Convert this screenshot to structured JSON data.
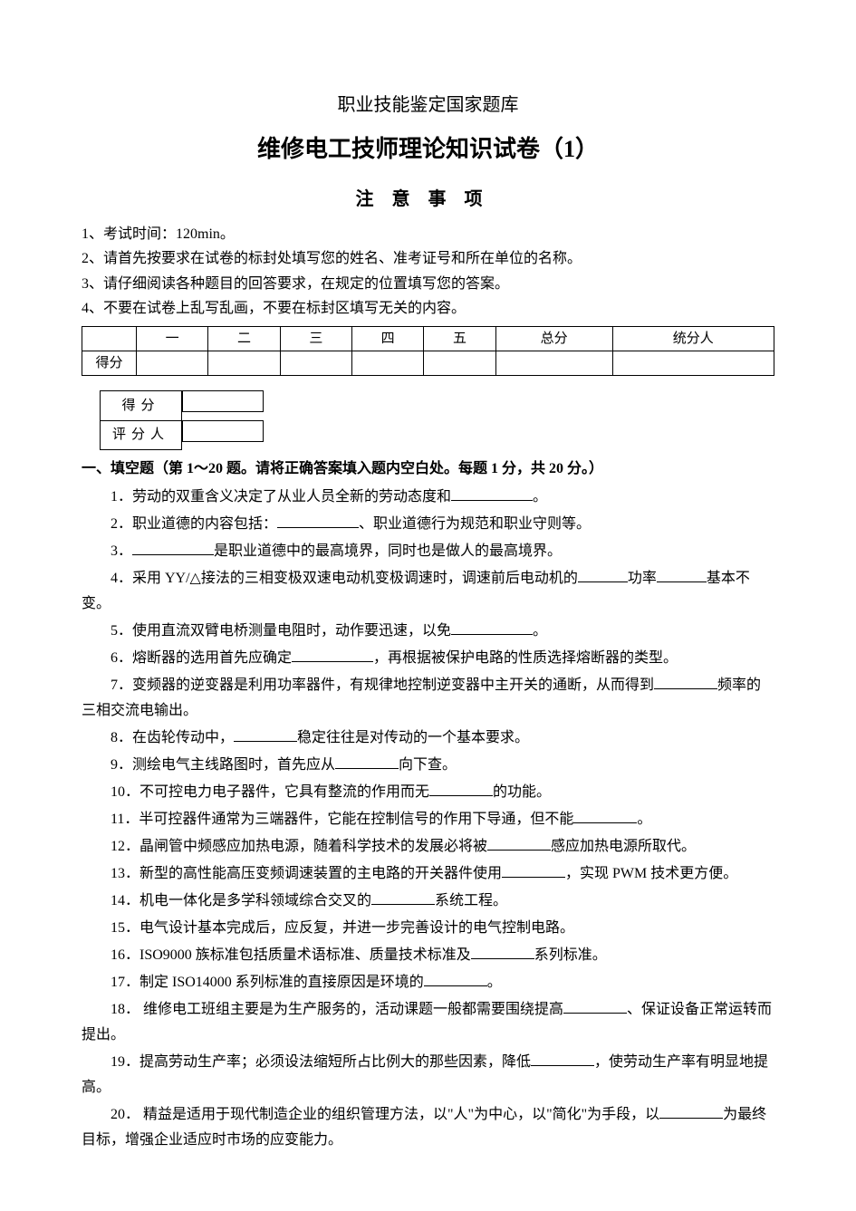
{
  "header": {
    "pretitle": "职业技能鉴定国家题库",
    "title": "维修电工技师理论知识试卷（1）",
    "notice_heading": "注意事项"
  },
  "notices": {
    "n1": "1、考试时间：120min。",
    "n2": "2、请首先按要求在试卷的标封处填写您的姓名、准考证号和所在单位的名称。",
    "n3": "3、请仔细阅读各种题目的回答要求，在规定的位置填写您的答案。",
    "n4": "4、不要在试卷上乱写乱画，不要在标封区填写无关的内容。"
  },
  "score_table": {
    "row_label": "得分",
    "cols": {
      "c1": "一",
      "c2": "二",
      "c3": "三",
      "c4": "四",
      "c5": "五",
      "c6": "总分",
      "c7": "统分人"
    }
  },
  "mini_table": {
    "r1": "得分",
    "r2": "评分人"
  },
  "section1_heading": "一、填空题（第 1～20 题。请将正确答案填入题内空白处。每题 1 分，共 20 分。）",
  "q": {
    "q1a": "1．劳动的双重含义决定了从业人员全新的劳动态度和",
    "q1b": "。",
    "q2a": "2．职业道德的内容包括：",
    "q2b": "、职业道德行为规范和职业守则等。",
    "q3a": "3．",
    "q3b": "是职业道德中的最高境界，同时也是做人的最高境界。",
    "q4a": "4．采用 YY/△接法的三相变极双速电动机变极调速时，调速前后电动机的",
    "q4b": "功率",
    "q4c": "基本不变。",
    "q5a": "5．使用直流双臂电桥测量电阻时，动作要迅速，以免",
    "q5b": "。",
    "q6a": "6．熔断器的选用首先应确定",
    "q6b": "，再根据被保护电路的性质选择熔断器的类型。",
    "q7a": "7．变频器的逆变器是利用功率器件，有规律地控制逆变器中主开关的通断，从而得到",
    "q7b": "频率的三相交流电输出。",
    "q8a": "8．在齿轮传动中，",
    "q8b": "稳定往往是对传动的一个基本要求。",
    "q9a": "9．测绘电气主线路图时，首先应从",
    "q9b": "向下查。",
    "q10a": "10．不可控电力电子器件，它具有整流的作用而无",
    "q10b": "的功能。",
    "q11a": "11．半可控器件通常为三端器件，它能在控制信号的作用下导通，但不能",
    "q11b": "。",
    "q12a": "12．晶闸管中频感应加热电源，随着科学技术的发展必将被",
    "q12b": "感应加热电源所取代。",
    "q13a": "13．新型的高性能高压变频调速装置的主电路的开关器件使用",
    "q13b": "，实现 PWM 技术更方便。",
    "q14a": "14．机电一体化是多学科领域综合交叉的",
    "q14b": "系统工程。",
    "q15": "15．电气设计基本完成后，应反复，并进一步完善设计的电气控制电路。",
    "q16a": "16．ISO9000 族标准包括质量术语标准、质量技术标准及",
    "q16b": "系列标准。",
    "q17a": "17．制定 ISO14000 系列标准的直接原因是环境的",
    "q17b": "。",
    "q18a": "18． 维修电工班组主要是为生产服务的，活动课题一般都需要围绕提高",
    "q18b": "、保证设备正常运转而提出。",
    "q19a": "19．提高劳动生产率；必须设法缩短所占比例大的那些因素，降低",
    "q19b": "，使劳动生产率有明显地提高。",
    "q20a": "20． 精益是适用于现代制造企业的组织管理方法，以\"人\"为中心，以\"简化\"为手段，以",
    "q20b": "为最终目标，增强企业适应时市场的应变能力。"
  }
}
